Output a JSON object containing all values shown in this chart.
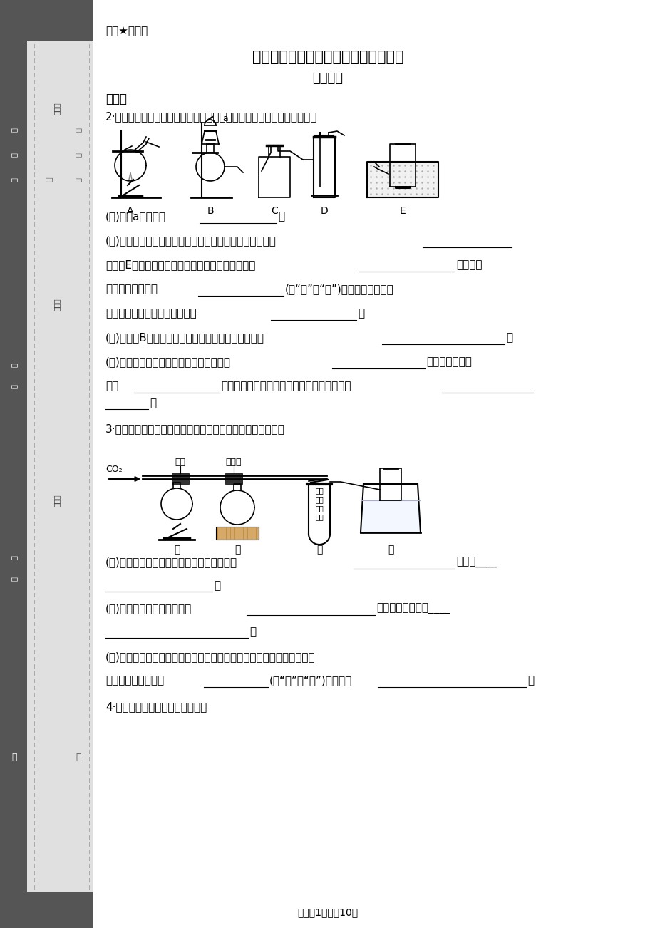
{
  "bg_color": "#ffffff",
  "title_top": "绝密★启用前",
  "title_main": "初三化学第六单元经典实验探究题汇总",
  "title_sub": "老刻秘籍",
  "section_label": "实验题",
  "footer": "试卷第1页，怹10页"
}
